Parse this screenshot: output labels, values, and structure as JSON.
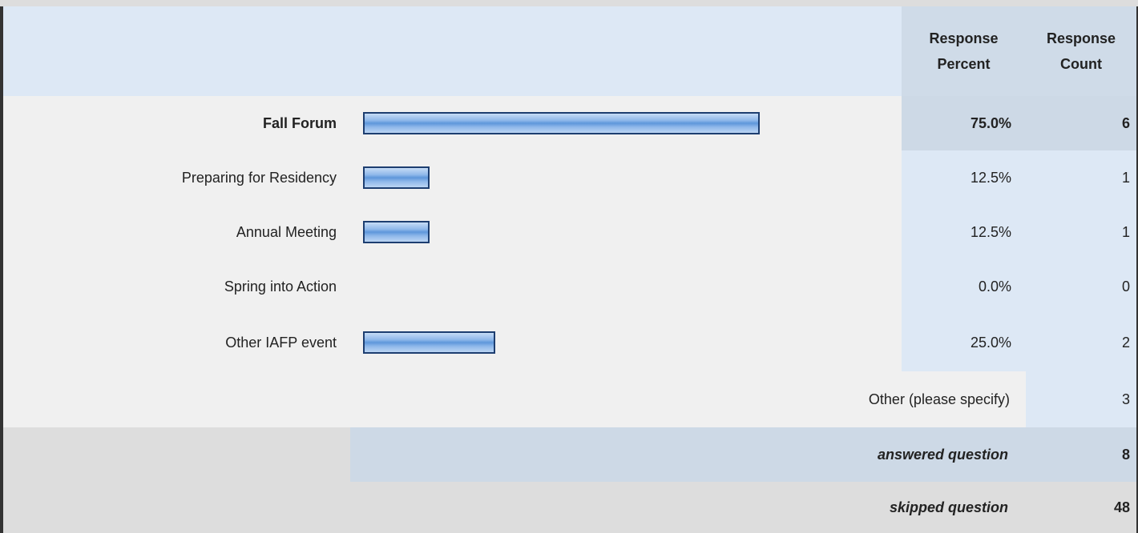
{
  "header": {
    "columns": [
      "Response Percent",
      "Response Count"
    ]
  },
  "rows": [
    {
      "label": "Fall Forum",
      "percent": 75,
      "percent_label": "75.0%",
      "count": 6
    },
    {
      "label": "Preparing for Residency",
      "percent": 12.5,
      "percent_label": "12.5%",
      "count": 1
    },
    {
      "label": "Annual Meeting",
      "percent": 12.5,
      "percent_label": "12.5%",
      "count": 1
    },
    {
      "label": "Spring into Action",
      "percent": 0,
      "percent_label": "0.0%",
      "count": 0
    },
    {
      "label": "Other IAFP event",
      "percent": 25,
      "percent_label": "25.0%",
      "count": 2
    }
  ],
  "other": {
    "label": "Other (please specify)",
    "count": 3
  },
  "answered": {
    "label": "answered question",
    "count": 8
  },
  "skipped": {
    "label": "skipped question",
    "count": 48
  }
}
